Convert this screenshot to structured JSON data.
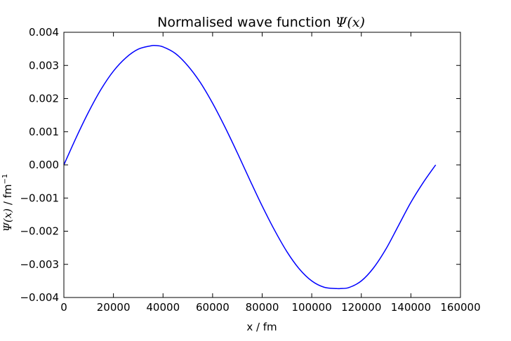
{
  "chart_data": {
    "type": "line",
    "title_prefix": "Normalised wave function ",
    "title_math": "Ψ(x)",
    "xlabel": "x / fm",
    "ylabel_math": "Ψ(x)",
    "ylabel_text": " / fm",
    "ylabel_sup": "−1",
    "xlim": [
      0,
      160000
    ],
    "ylim": [
      -0.004,
      0.004
    ],
    "x_ticks": [
      0,
      20000,
      40000,
      60000,
      80000,
      100000,
      120000,
      140000,
      160000
    ],
    "x_tick_labels": [
      "0",
      "20000",
      "40000",
      "60000",
      "80000",
      "100000",
      "120000",
      "140000",
      "160000"
    ],
    "y_ticks": [
      0.004,
      0.003,
      0.002,
      0.001,
      0.0,
      -0.001,
      -0.002,
      -0.003,
      -0.004
    ],
    "y_tick_labels": [
      "0.004",
      "0.003",
      "0.002",
      "0.001",
      "0.000",
      "−0.001",
      "−0.002",
      "−0.003",
      "−0.004"
    ],
    "grid": false,
    "series": [
      {
        "color": "#0000ff",
        "x": [
          0,
          5000,
          10000,
          15000,
          20000,
          25000,
          30000,
          35000,
          37000,
          40000,
          45000,
          50000,
          55000,
          60000,
          65000,
          70000,
          75000,
          80000,
          85000,
          90000,
          95000,
          100000,
          105000,
          110000,
          111500,
          115000,
          120000,
          125000,
          130000,
          135000,
          140000,
          145000,
          150000
        ],
        "y": [
          0.0,
          0.00083,
          0.0016,
          0.00228,
          0.00283,
          0.00323,
          0.00349,
          0.00359,
          0.0036,
          0.00356,
          0.00336,
          0.00299,
          0.00249,
          0.00186,
          0.00114,
          0.00036,
          -0.00045,
          -0.00124,
          -0.00197,
          -0.00262,
          -0.00314,
          -0.0035,
          -0.00369,
          -0.00373,
          -0.00373,
          -0.0037,
          -0.0035,
          -0.0031,
          -0.00253,
          -0.00183,
          -0.00113,
          -0.00053,
          0.0
        ]
      }
    ]
  }
}
